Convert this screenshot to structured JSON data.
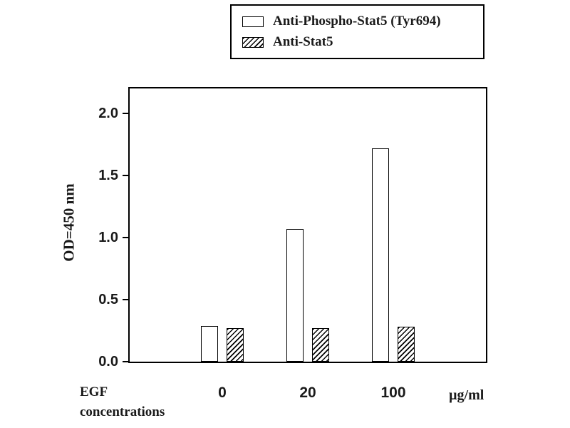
{
  "figure": {
    "background": "#ffffff",
    "bar_border_color": "#000000"
  },
  "legend": {
    "items": [
      {
        "label": "Anti-Phospho-Stat5 (Tyr694)",
        "swatch": "open"
      },
      {
        "label": "Anti-Stat5",
        "swatch": "hatched"
      }
    ]
  },
  "axes": {
    "y_title": "OD=450 nm",
    "x_title": "EGF\nconcentrations",
    "x_unit": "µg/ml"
  },
  "chart_data": {
    "type": "bar",
    "title": "",
    "categories": [
      "0",
      "20",
      "100"
    ],
    "series": [
      {
        "name": "Anti-Phospho-Stat5 (Tyr694)",
        "style": "open",
        "values": [
          0.29,
          1.07,
          1.72
        ]
      },
      {
        "name": "Anti-Stat5",
        "style": "hatched",
        "values": [
          0.27,
          0.27,
          0.28
        ]
      }
    ],
    "xlabel": "EGF concentrations (µg/ml)",
    "ylabel": "OD=450 nm",
    "ylim": [
      0,
      2.2
    ],
    "yticks": [
      0,
      0.5,
      1.0,
      1.5,
      2.0
    ],
    "ytick_labels": [
      "0.0",
      "0.5",
      "1.0",
      "1.5",
      "2.0"
    ],
    "grid": false,
    "legend_position": "top",
    "group_center_fracs": [
      0.26,
      0.5,
      0.74
    ]
  }
}
